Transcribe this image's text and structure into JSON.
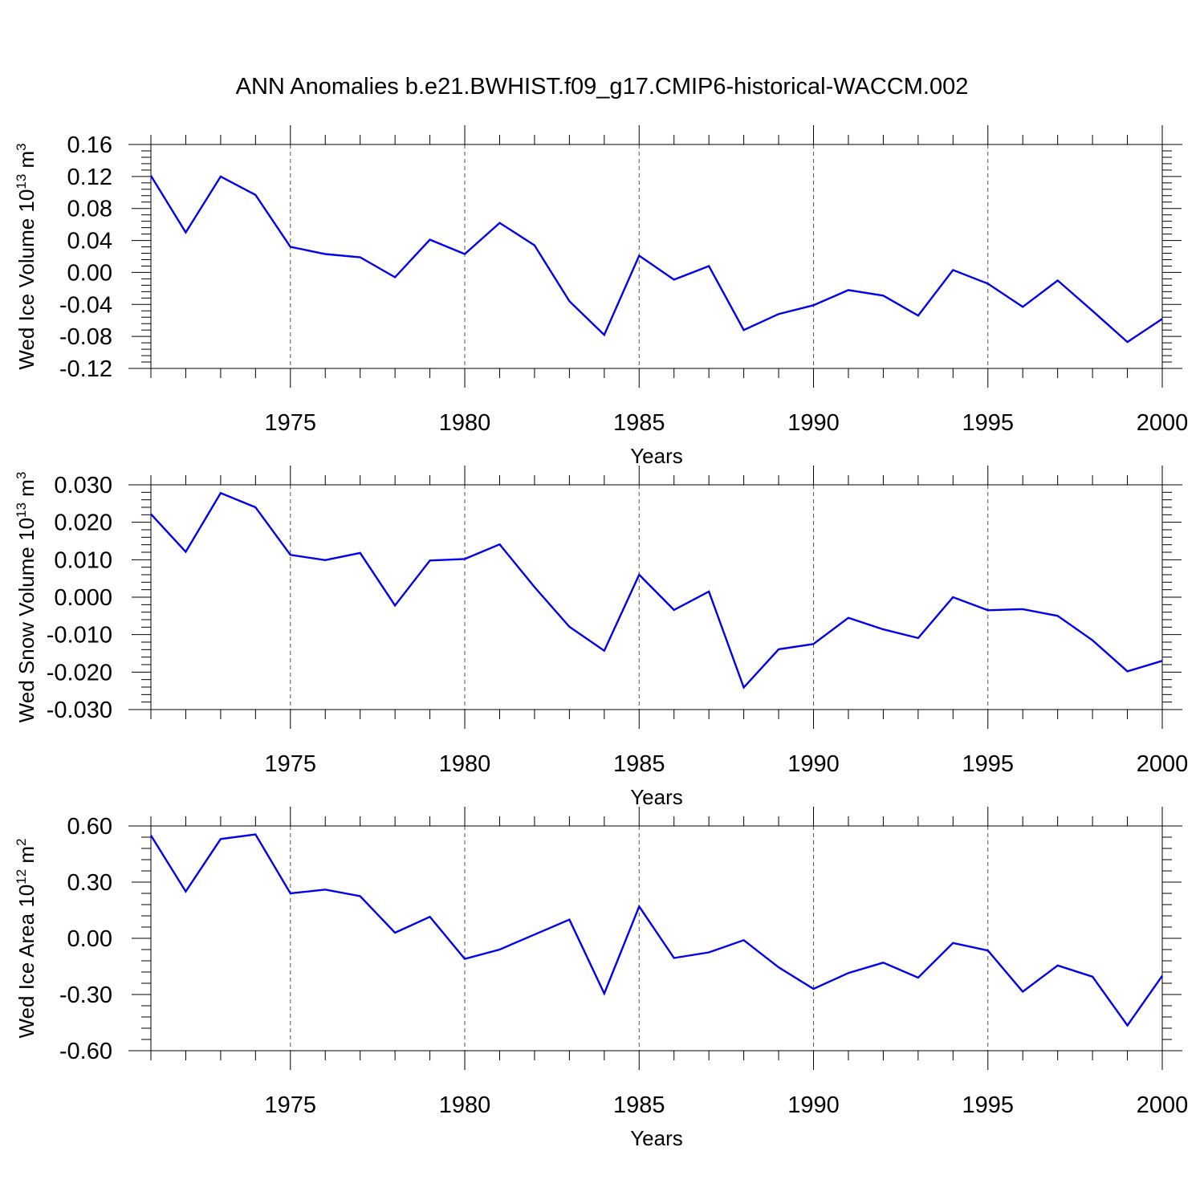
{
  "title": "ANN Anomalies b.e21.BWHIST.f09_g17.CMIP6-historical-WACCM.002",
  "colors": {
    "series": "#0000ee"
  },
  "chart_data": [
    {
      "type": "line",
      "ylabel": {
        "text": "Wed Ice Volume 10",
        "exp": "13",
        "unit": " m",
        "unit_exp": "3"
      },
      "xlabel": "Years",
      "xlim": [
        1971,
        2000
      ],
      "ylim": [
        -0.12,
        0.16
      ],
      "yticks": [
        "0.16",
        "0.12",
        "0.08",
        "0.04",
        "0.00",
        "-0.04",
        "-0.08",
        "-0.12"
      ],
      "ytick_values": [
        0.16,
        0.12,
        0.08,
        0.04,
        0.0,
        -0.04,
        -0.08,
        -0.12
      ],
      "xticks": [
        "1975",
        "1980",
        "1985",
        "1990",
        "1995",
        "2000"
      ],
      "xtick_values": [
        1975,
        1980,
        1985,
        1990,
        1995,
        2000
      ],
      "grid": "vertical-dashed",
      "x": [
        1971,
        1972,
        1973,
        1974,
        1975,
        1976,
        1977,
        1978,
        1979,
        1980,
        1981,
        1982,
        1983,
        1984,
        1985,
        1986,
        1987,
        1988,
        1989,
        1990,
        1991,
        1992,
        1993,
        1994,
        1995,
        1996,
        1997,
        1998,
        1999,
        2000
      ],
      "values": [
        0.121,
        0.05,
        0.12,
        0.097,
        0.032,
        0.023,
        0.019,
        -0.006,
        0.041,
        0.023,
        0.062,
        0.034,
        -0.036,
        -0.078,
        0.021,
        -0.009,
        0.008,
        -0.072,
        -0.052,
        -0.041,
        -0.022,
        -0.029,
        -0.054,
        0.003,
        -0.014,
        -0.043,
        -0.01,
        -0.048,
        -0.087,
        -0.058
      ]
    },
    {
      "type": "line",
      "ylabel": {
        "text": "Wed Snow Volume 10",
        "exp": "13",
        "unit": " m",
        "unit_exp": "3"
      },
      "xlabel": "Years",
      "xlim": [
        1971,
        2000
      ],
      "ylim": [
        -0.03,
        0.03
      ],
      "yticks": [
        "0.030",
        "0.020",
        "0.010",
        "0.000",
        "-0.010",
        "-0.020",
        "-0.030"
      ],
      "ytick_values": [
        0.03,
        0.02,
        0.01,
        0.0,
        -0.01,
        -0.02,
        -0.03
      ],
      "xticks": [
        "1975",
        "1980",
        "1985",
        "1990",
        "1995",
        "2000"
      ],
      "xtick_values": [
        1975,
        1980,
        1985,
        1990,
        1995,
        2000
      ],
      "grid": "vertical-dashed",
      "x": [
        1971,
        1972,
        1973,
        1974,
        1975,
        1976,
        1977,
        1978,
        1979,
        1980,
        1981,
        1982,
        1983,
        1984,
        1985,
        1986,
        1987,
        1988,
        1989,
        1990,
        1991,
        1992,
        1993,
        1994,
        1995,
        1996,
        1997,
        1998,
        1999,
        2000
      ],
      "values": [
        0.0222,
        0.0121,
        0.0278,
        0.024,
        0.0113,
        0.0099,
        0.0118,
        -0.0022,
        0.0098,
        0.0102,
        0.0141,
        0.0027,
        -0.0079,
        -0.0143,
        0.006,
        -0.0034,
        0.0015,
        -0.0241,
        -0.0139,
        -0.0125,
        -0.0055,
        -0.0086,
        -0.0109,
        0.0,
        -0.0035,
        -0.0032,
        -0.005,
        -0.0115,
        -0.0198,
        -0.017
      ]
    },
    {
      "type": "line",
      "ylabel": {
        "text": "Wed Ice Area 10",
        "exp": "12",
        "unit": " m",
        "unit_exp": "2"
      },
      "xlabel": "Years",
      "xlim": [
        1971,
        2000
      ],
      "ylim": [
        -0.6,
        0.6
      ],
      "yticks": [
        "0.60",
        "0.30",
        "0.00",
        "-0.30",
        "-0.60"
      ],
      "ytick_values": [
        0.6,
        0.3,
        0.0,
        -0.3,
        -0.6
      ],
      "xticks": [
        "1975",
        "1980",
        "1985",
        "1990",
        "1995",
        "2000"
      ],
      "xtick_values": [
        1975,
        1980,
        1985,
        1990,
        1995,
        2000
      ],
      "grid": "vertical-dashed",
      "x": [
        1971,
        1972,
        1973,
        1974,
        1975,
        1976,
        1977,
        1978,
        1979,
        1980,
        1981,
        1982,
        1983,
        1984,
        1985,
        1986,
        1987,
        1988,
        1989,
        1990,
        1991,
        1992,
        1993,
        1994,
        1995,
        1996,
        1997,
        1998,
        1999,
        2000
      ],
      "values": [
        0.55,
        0.25,
        0.53,
        0.555,
        0.24,
        0.26,
        0.225,
        0.03,
        0.115,
        -0.11,
        -0.06,
        0.02,
        0.1,
        -0.295,
        0.17,
        -0.105,
        -0.075,
        -0.01,
        -0.155,
        -0.27,
        -0.185,
        -0.13,
        -0.21,
        -0.025,
        -0.065,
        -0.285,
        -0.145,
        -0.205,
        -0.465,
        -0.2
      ]
    }
  ]
}
